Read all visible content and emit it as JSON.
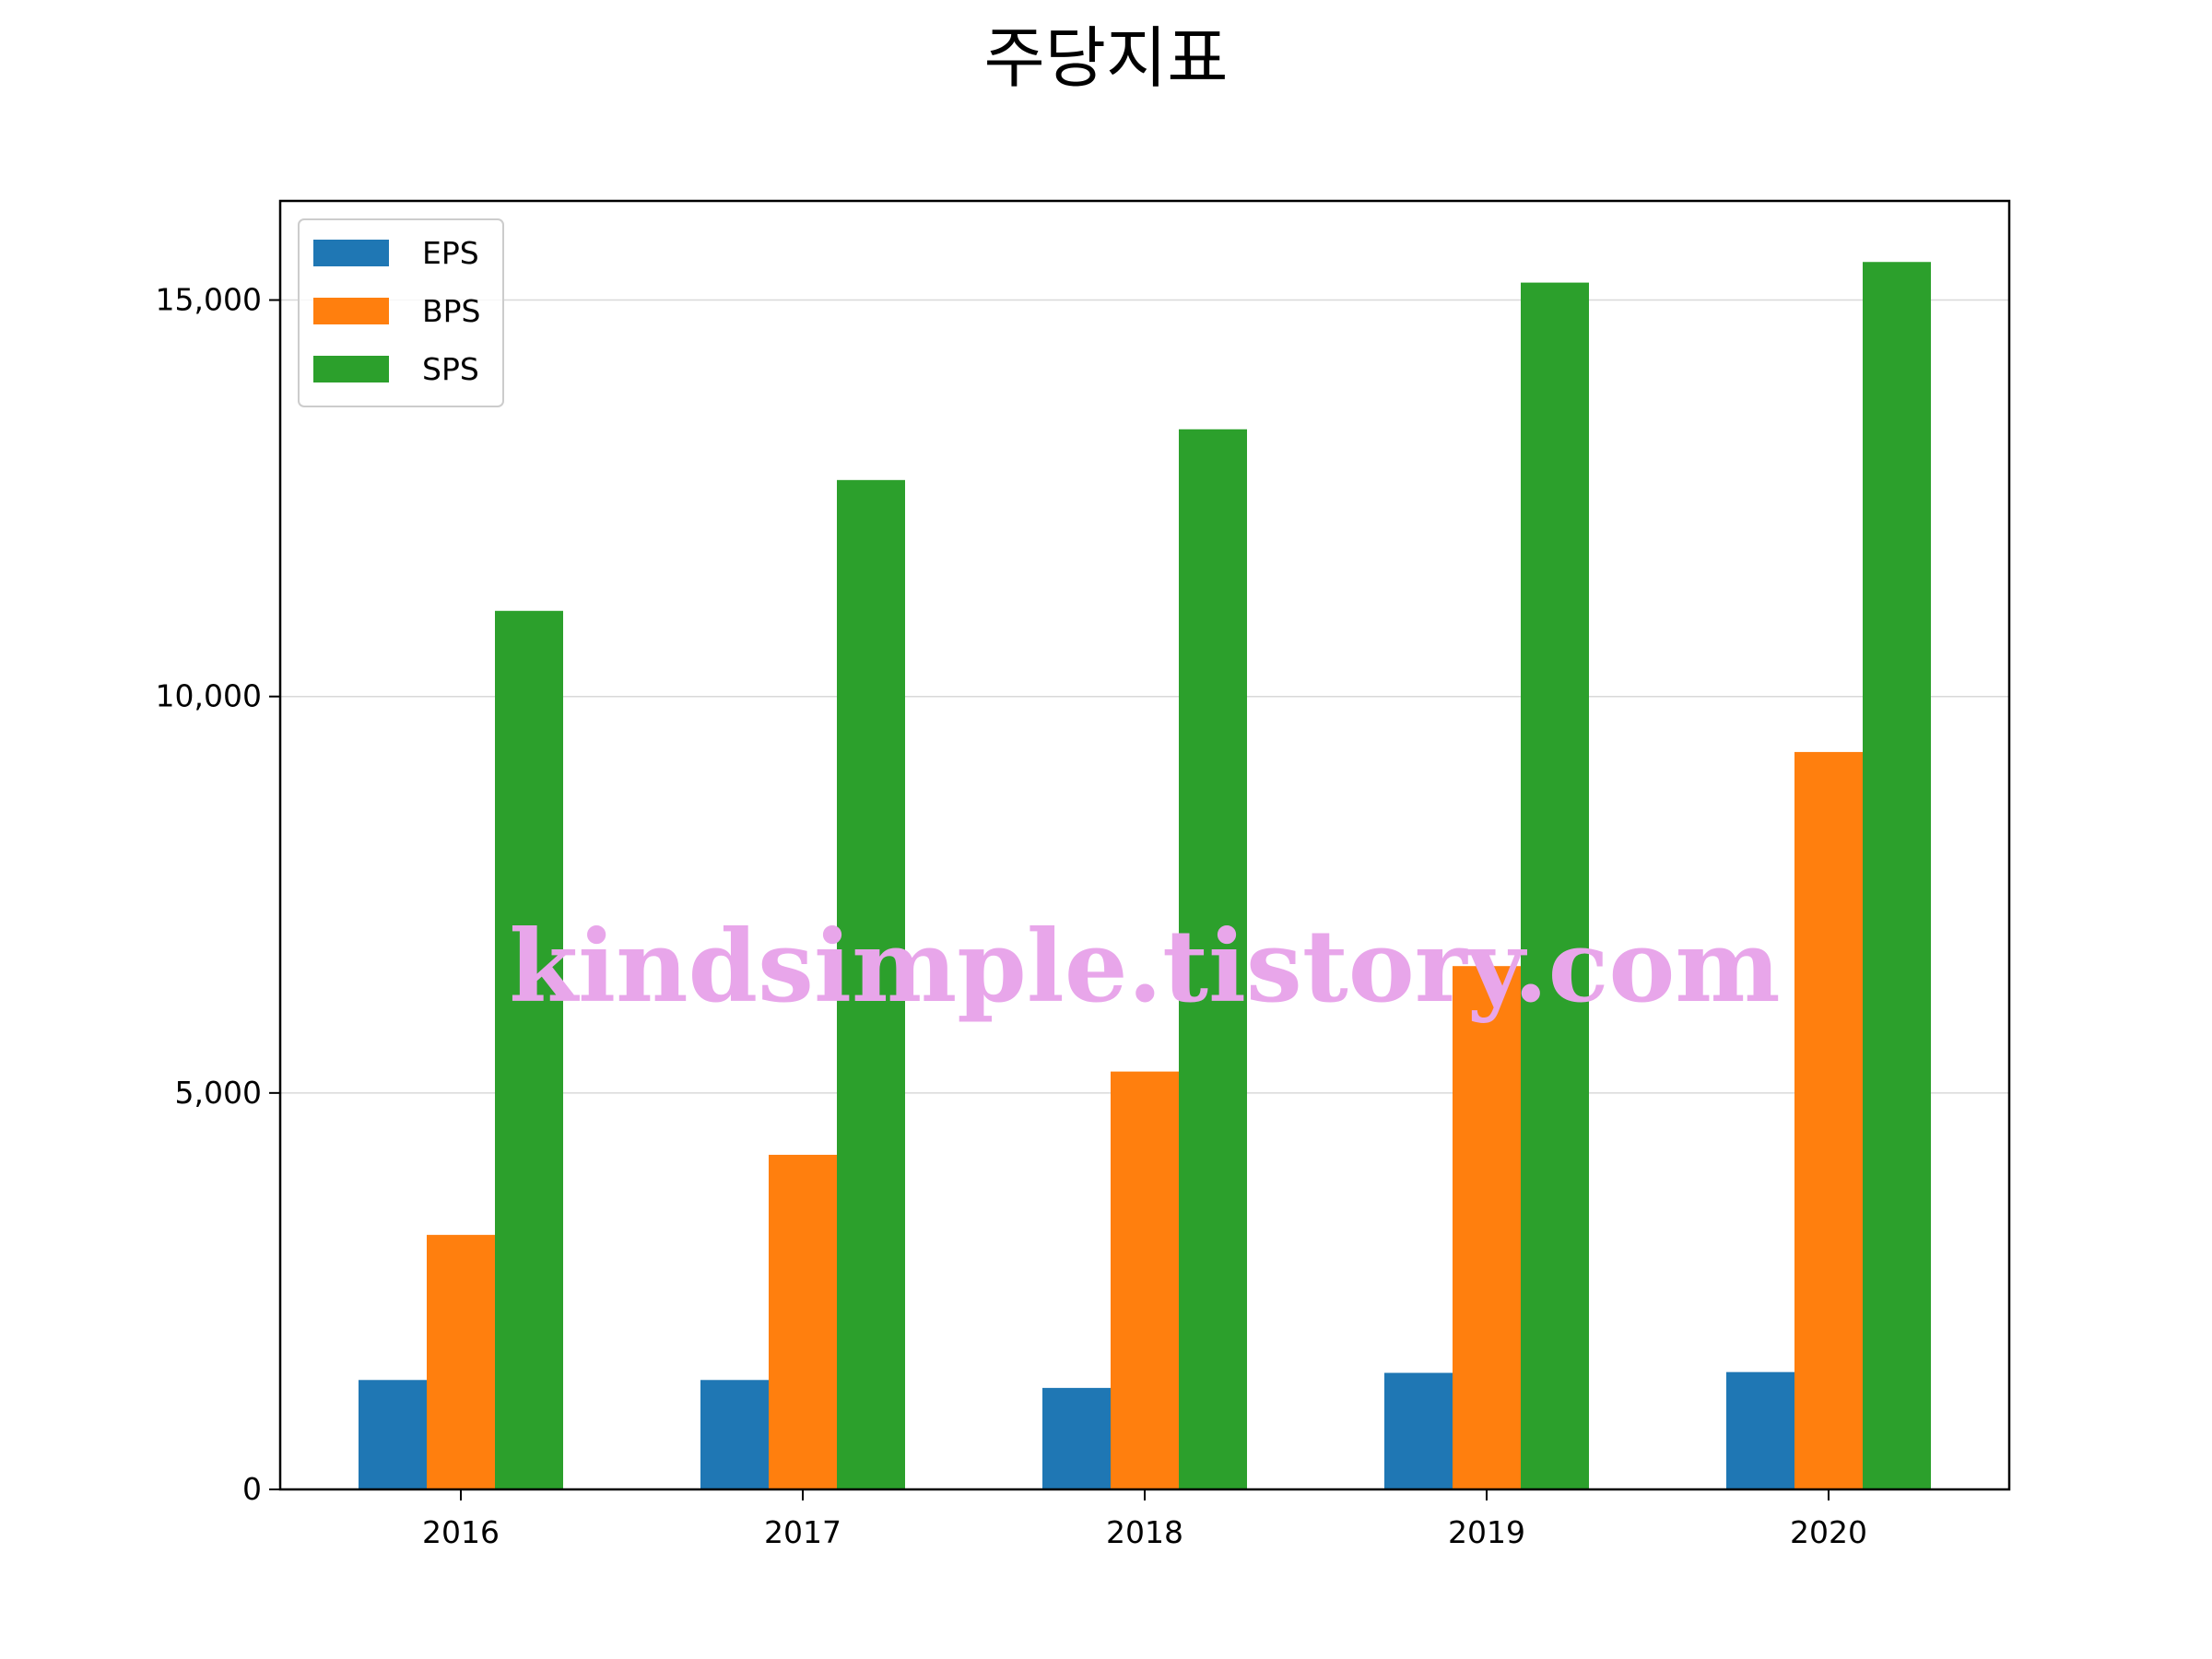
{
  "chart_data": {
    "type": "bar",
    "title": "주당지표",
    "xlabel": "",
    "ylabel": "",
    "categories": [
      "2016",
      "2017",
      "2018",
      "2019",
      "2020"
    ],
    "series": [
      {
        "name": "EPS",
        "color": "#1f77b4",
        "values": [
          1380,
          1380,
          1280,
          1470,
          1480
        ]
      },
      {
        "name": "BPS",
        "color": "#ff7f0e",
        "values": [
          3210,
          4220,
          5270,
          6600,
          9300
        ]
      },
      {
        "name": "SPS",
        "color": "#2ca02c",
        "values": [
          11080,
          12730,
          13370,
          15220,
          15480
        ]
      }
    ],
    "ylim": [
      0,
      16250
    ],
    "yticks": [
      0,
      5000,
      10000,
      15000
    ],
    "ytick_labels": [
      "0",
      "5,000",
      "10,000",
      "15,000"
    ],
    "grid": "y",
    "legend": "top-left",
    "watermark": "kindsimple.tistory.com"
  }
}
